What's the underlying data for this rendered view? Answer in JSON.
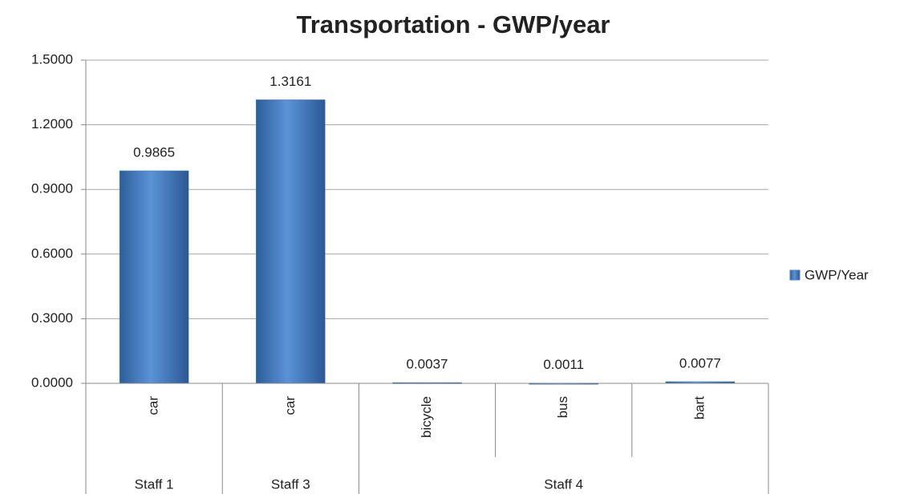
{
  "chart_data": {
    "type": "bar",
    "title": "Transportation - GWP/year",
    "groups": [
      {
        "name": "Staff 1",
        "categories": [
          "car"
        ]
      },
      {
        "name": "Staff 3",
        "categories": [
          "car"
        ]
      },
      {
        "name": "Staff 4",
        "categories": [
          "bicycle",
          "bus",
          "bart"
        ]
      }
    ],
    "series": [
      {
        "name": "GWP/Year",
        "color": "#4a7ebb",
        "values": [
          0.9865,
          1.3161,
          0.0037,
          0.0011,
          0.0077
        ]
      }
    ],
    "ylim": [
      0,
      1.5
    ],
    "yticks": [
      {
        "value": 0,
        "label": "0.0000"
      },
      {
        "value": 0.3,
        "label": "0.3000"
      },
      {
        "value": 0.6,
        "label": "0.6000"
      },
      {
        "value": 0.9,
        "label": "0.9000"
      },
      {
        "value": 1.2,
        "label": "1.2000"
      },
      {
        "value": 1.5,
        "label": "1.5000"
      }
    ],
    "grid": true,
    "legend": "right"
  }
}
